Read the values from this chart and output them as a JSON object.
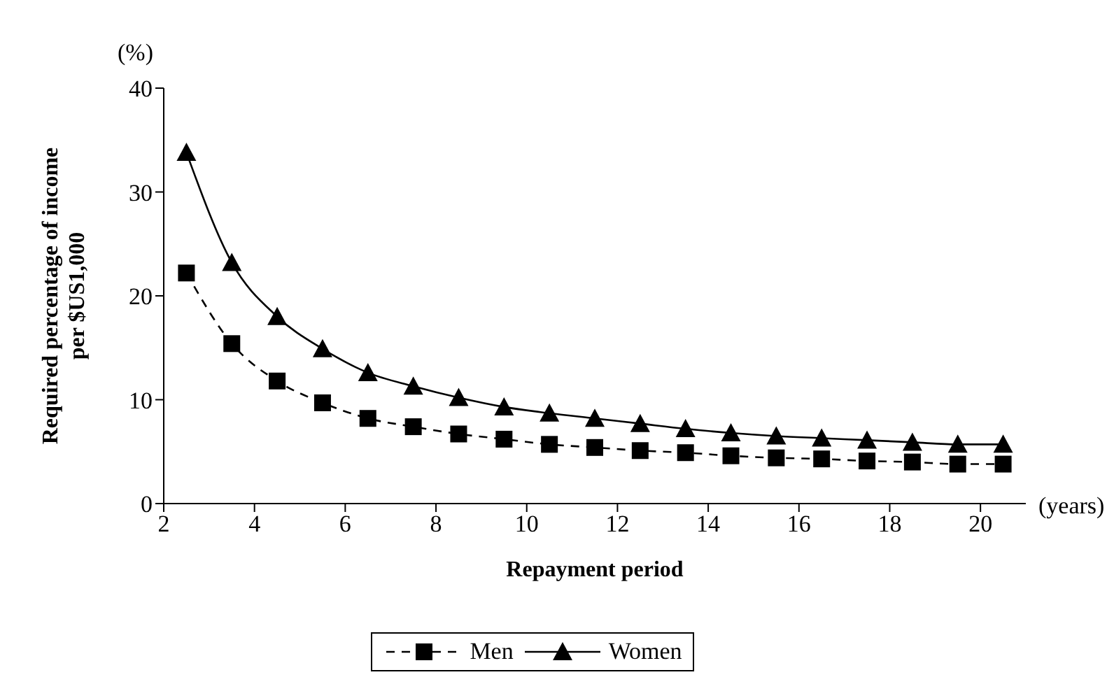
{
  "chart_data": {
    "type": "line",
    "xlabel": "Repayment period",
    "ylabel": "Required percentage of income per $US1,000",
    "annotations": [
      "(%)",
      "(years)"
    ],
    "x": [
      2.5,
      3.5,
      4.5,
      5.5,
      6.5,
      7.5,
      8.5,
      9.5,
      10.5,
      11.5,
      12.5,
      13.5,
      14.5,
      15.5,
      16.5,
      17.5,
      18.5,
      19.5,
      20.5
    ],
    "series": [
      {
        "name": "Men",
        "color": "#000000",
        "marker": "square",
        "line_style": "dashed",
        "values": [
          22.2,
          15.4,
          11.8,
          9.7,
          8.2,
          7.4,
          6.7,
          6.2,
          5.7,
          5.4,
          5.1,
          4.9,
          4.6,
          4.4,
          4.3,
          4.1,
          4.0,
          3.8,
          3.8
        ]
      },
      {
        "name": "Women",
        "color": "#000000",
        "marker": "triangle",
        "line_style": "solid",
        "values": [
          33.8,
          23.2,
          18.0,
          14.9,
          12.6,
          11.3,
          10.2,
          9.3,
          8.7,
          8.2,
          7.7,
          7.2,
          6.8,
          6.5,
          6.3,
          6.1,
          5.9,
          5.7,
          5.7
        ]
      }
    ],
    "xlim": [
      2,
      21
    ],
    "xticks": [
      2,
      4,
      6,
      8,
      10,
      12,
      14,
      16,
      18,
      20
    ],
    "ylim": [
      0,
      40
    ],
    "yticks": [
      0,
      10,
      20,
      30,
      40
    ],
    "grid": false,
    "legend": "bottom"
  }
}
